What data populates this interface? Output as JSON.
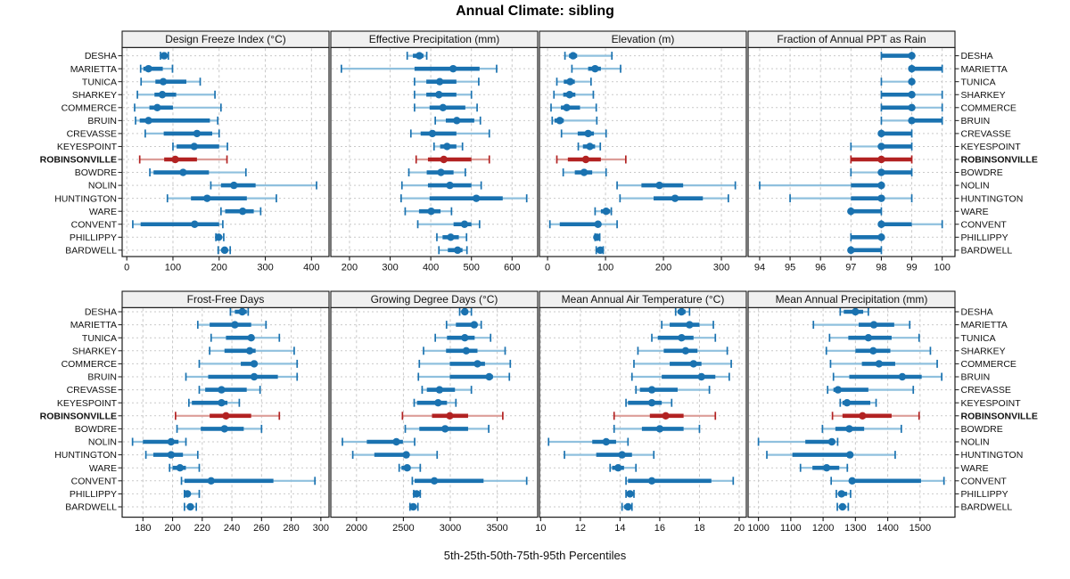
{
  "title": "Annual Climate: sibling",
  "caption": "5th-25th-50th-75th-95th Percentiles",
  "chart_data": {
    "type": "dotplot-trellis",
    "title": "Annual Climate: sibling",
    "caption": "5th-25th-50th-75th-95th Percentiles",
    "percentiles": [
      5,
      25,
      50,
      75,
      95
    ],
    "grid": true,
    "legend_position": "none",
    "highlight_site": "ROBINSONVILLE",
    "sites": [
      "DESHA",
      "MARIETTA",
      "TUNICA",
      "SHARKEY",
      "COMMERCE",
      "BRUIN",
      "CREVASSE",
      "KEYESPOINT",
      "ROBINSONVILLE",
      "BOWDRE",
      "NOLIN",
      "HUNTINGTON",
      "WARE",
      "CONVENT",
      "PHILLIPPY",
      "BARDWELL"
    ],
    "colors": {
      "series": "#1a72b0",
      "series_light": "#8fc0de",
      "highlight": "#b22222",
      "highlight_light": "#dc9d98",
      "grid": "#c9c9c9",
      "strip_bg": "#f0f0f0",
      "border": "#1a1a1a",
      "text": "#111111"
    },
    "panels": [
      {
        "title": "Design Freeze Index (°C)",
        "grid_row": 0,
        "grid_col": 0,
        "xlim": [
          -10,
          438
        ],
        "ticks": [
          0,
          100,
          200,
          300,
          400
        ],
        "values": [
          [
            73,
            76,
            81,
            86,
            90
          ],
          [
            30,
            36,
            47,
            78,
            99
          ],
          [
            31,
            62,
            79,
            129,
            159
          ],
          [
            23,
            60,
            77,
            107,
            191
          ],
          [
            17,
            49,
            66,
            100,
            204
          ],
          [
            19,
            28,
            47,
            180,
            197
          ],
          [
            40,
            80,
            152,
            185,
            200
          ],
          [
            100,
            108,
            146,
            200,
            218
          ],
          [
            28,
            81,
            105,
            152,
            217
          ],
          [
            50,
            58,
            122,
            178,
            258
          ],
          [
            182,
            204,
            232,
            279,
            411
          ],
          [
            88,
            139,
            174,
            260,
            324
          ],
          [
            204,
            213,
            251,
            275,
            290
          ],
          [
            13,
            30,
            147,
            200,
            208
          ],
          [
            193,
            196,
            199,
            205,
            210
          ],
          [
            198,
            205,
            212,
            218,
            224
          ]
        ]
      },
      {
        "title": "Effective Precipitation (mm)",
        "grid_row": 0,
        "grid_col": 1,
        "xlim": [
          154,
          663
        ],
        "ticks": [
          200,
          300,
          400,
          500,
          600
        ],
        "values": [
          [
            342,
            356,
            372,
            382,
            390
          ],
          [
            180,
            360,
            455,
            520,
            562
          ],
          [
            360,
            389,
            422,
            463,
            518
          ],
          [
            360,
            389,
            420,
            463,
            500
          ],
          [
            360,
            397,
            430,
            485,
            514
          ],
          [
            411,
            437,
            464,
            507,
            522
          ],
          [
            351,
            375,
            404,
            463,
            544
          ],
          [
            408,
            423,
            440,
            463,
            478
          ],
          [
            364,
            393,
            432,
            500,
            544
          ],
          [
            346,
            390,
            425,
            456,
            485
          ],
          [
            329,
            393,
            447,
            500,
            524
          ],
          [
            327,
            397,
            512,
            577,
            636
          ],
          [
            337,
            371,
            401,
            424,
            451
          ],
          [
            368,
            456,
            483,
            500,
            520
          ],
          [
            415,
            429,
            449,
            469,
            488
          ],
          [
            420,
            442,
            466,
            478,
            489
          ]
        ]
      },
      {
        "title": "Elevation (m)",
        "grid_row": 0,
        "grid_col": 2,
        "xlim": [
          -14,
          343
        ],
        "ticks": [
          0,
          100,
          200,
          300
        ],
        "values": [
          [
            30,
            37,
            44,
            51,
            111
          ],
          [
            42,
            70,
            82,
            92,
            126
          ],
          [
            16,
            28,
            39,
            47,
            75
          ],
          [
            11,
            27,
            38,
            48,
            79
          ],
          [
            6,
            23,
            33,
            56,
            84
          ],
          [
            8,
            12,
            21,
            28,
            85
          ],
          [
            24,
            52,
            70,
            80,
            101
          ],
          [
            53,
            61,
            73,
            82,
            91
          ],
          [
            16,
            35,
            66,
            92,
            135
          ],
          [
            27,
            47,
            63,
            77,
            101
          ],
          [
            120,
            162,
            193,
            234,
            324
          ],
          [
            125,
            183,
            220,
            268,
            312
          ],
          [
            82,
            92,
            101,
            108,
            110
          ],
          [
            4,
            21,
            87,
            92,
            120
          ],
          [
            82,
            84,
            85,
            88,
            90
          ],
          [
            84,
            88,
            91,
            94,
            96
          ]
        ]
      },
      {
        "title": "Fraction of Annual PPT as Rain",
        "grid_row": 0,
        "grid_col": 3,
        "xlim": [
          93.62,
          100.42
        ],
        "ticks": [
          94,
          95,
          96,
          97,
          98,
          99,
          100
        ],
        "values": [
          [
            98,
            98,
            99,
            99,
            99
          ],
          [
            99,
            99,
            99,
            100,
            100
          ],
          [
            98,
            99,
            99,
            99,
            99
          ],
          [
            98,
            98,
            99,
            99,
            100
          ],
          [
            98,
            98,
            99,
            99,
            100
          ],
          [
            98,
            99,
            99,
            100,
            100
          ],
          [
            98,
            98,
            98,
            99,
            99
          ],
          [
            97,
            98,
            98,
            99,
            99
          ],
          [
            97,
            97,
            98,
            99,
            99
          ],
          [
            97,
            98,
            98,
            99,
            99
          ],
          [
            94,
            97,
            98,
            98,
            98
          ],
          [
            95,
            97,
            98,
            98,
            99
          ],
          [
            97,
            97,
            97,
            98,
            98
          ],
          [
            98,
            98,
            98,
            99,
            100
          ],
          [
            97,
            97,
            98,
            98,
            98
          ],
          [
            97,
            97,
            97,
            98,
            98
          ]
        ]
      },
      {
        "title": "Frost-Free Days",
        "grid_row": 1,
        "grid_col": 0,
        "xlim": [
          166,
          305.5
        ],
        "ticks": [
          180,
          200,
          220,
          240,
          260,
          280,
          300
        ],
        "values": [
          [
            239,
            242,
            247,
            250,
            251
          ],
          [
            217,
            225,
            242,
            253,
            263
          ],
          [
            226,
            236,
            253,
            255,
            272
          ],
          [
            225,
            235,
            252,
            256,
            282
          ],
          [
            218,
            246,
            255,
            257,
            284
          ],
          [
            209,
            224,
            255,
            271,
            284
          ],
          [
            218,
            222,
            233,
            250,
            259
          ],
          [
            211,
            213,
            233,
            237,
            245
          ],
          [
            202,
            225,
            236,
            253,
            272
          ],
          [
            203,
            219,
            235,
            248,
            260
          ],
          [
            173,
            180,
            199,
            204,
            209
          ],
          [
            182,
            187,
            199,
            207,
            217
          ],
          [
            198,
            200,
            205,
            209,
            218
          ],
          [
            206,
            208,
            226,
            268,
            296
          ],
          [
            208,
            209,
            210,
            212,
            218
          ],
          [
            208,
            210,
            212,
            214,
            216
          ]
        ]
      },
      {
        "title": "Growing Degree Days (°C)",
        "grid_row": 1,
        "grid_col": 1,
        "xlim": [
          1726,
          3932
        ],
        "ticks": [
          2000,
          2500,
          3000,
          3500
        ],
        "values": [
          [
            3100,
            3120,
            3155,
            3190,
            3225
          ],
          [
            2960,
            3060,
            3255,
            3290,
            3330
          ],
          [
            2840,
            2965,
            3155,
            3260,
            3430
          ],
          [
            2715,
            2955,
            3170,
            3290,
            3585
          ],
          [
            2670,
            2995,
            3290,
            3370,
            3640
          ],
          [
            2660,
            2995,
            3415,
            3455,
            3630
          ],
          [
            2700,
            2750,
            2885,
            3050,
            3225
          ],
          [
            2615,
            2645,
            2870,
            2965,
            3060
          ],
          [
            2490,
            2805,
            2995,
            3190,
            3560
          ],
          [
            2520,
            2670,
            2945,
            3190,
            3410
          ],
          [
            1850,
            2110,
            2425,
            2495,
            2620
          ],
          [
            1960,
            2190,
            2530,
            2545,
            2860
          ],
          [
            2455,
            2480,
            2540,
            2575,
            2680
          ],
          [
            2595,
            2620,
            2830,
            3355,
            3815
          ],
          [
            2610,
            2625,
            2640,
            2655,
            2680
          ],
          [
            2570,
            2590,
            2605,
            2630,
            2655
          ]
        ]
      },
      {
        "title": "Mean Annual Air Temperature (°C)",
        "grid_row": 1,
        "grid_col": 2,
        "xlim": [
          9.94,
          20.36
        ],
        "ticks": [
          10,
          12,
          14,
          16,
          18,
          20
        ],
        "values": [
          [
            16.8,
            16.9,
            17.1,
            17.3,
            17.5
          ],
          [
            16.1,
            16.5,
            17.5,
            18.0,
            18.7
          ],
          [
            15.6,
            15.9,
            17.1,
            17.7,
            18.8
          ],
          [
            14.9,
            16.2,
            17.3,
            17.9,
            19.4
          ],
          [
            14.7,
            16.5,
            17.7,
            18.1,
            19.6
          ],
          [
            14.6,
            16.1,
            18.1,
            18.8,
            19.5
          ],
          [
            14.8,
            15.0,
            15.6,
            16.9,
            18.5
          ],
          [
            14.3,
            14.4,
            15.6,
            16.1,
            16.6
          ],
          [
            13.7,
            15.5,
            16.3,
            17.2,
            18.8
          ],
          [
            13.7,
            15.1,
            16.0,
            17.2,
            18.0
          ],
          [
            10.4,
            12.6,
            13.3,
            13.8,
            14.4
          ],
          [
            11.2,
            12.8,
            14.1,
            14.6,
            15.7
          ],
          [
            13.5,
            13.6,
            13.9,
            14.2,
            14.8
          ],
          [
            14.3,
            14.4,
            15.6,
            18.6,
            19.7
          ],
          [
            14.3,
            14.4,
            14.5,
            14.6,
            14.7
          ],
          [
            14.1,
            14.2,
            14.4,
            14.5,
            14.6
          ]
        ]
      },
      {
        "title": "Mean Annual Precipitation (mm)",
        "grid_row": 1,
        "grid_col": 3,
        "xlim": [
          968,
          1608
        ],
        "ticks": [
          1000,
          1100,
          1200,
          1300,
          1400,
          1500
        ],
        "values": [
          [
            1253,
            1264,
            1300,
            1324,
            1340
          ],
          [
            1170,
            1310,
            1357,
            1420,
            1468
          ],
          [
            1220,
            1278,
            1340,
            1412,
            1497
          ],
          [
            1210,
            1300,
            1355,
            1408,
            1532
          ],
          [
            1223,
            1320,
            1373,
            1423,
            1553
          ],
          [
            1232,
            1281,
            1445,
            1505,
            1567
          ],
          [
            1214,
            1232,
            1246,
            1340,
            1479
          ],
          [
            1253,
            1260,
            1274,
            1346,
            1364
          ],
          [
            1229,
            1260,
            1322,
            1412,
            1497
          ],
          [
            1198,
            1238,
            1281,
            1327,
            1442
          ],
          [
            1000,
            1145,
            1227,
            1237,
            1245
          ],
          [
            1026,
            1105,
            1283,
            1292,
            1423
          ],
          [
            1130,
            1167,
            1211,
            1250,
            1275
          ],
          [
            1225,
            1281,
            1290,
            1503,
            1574
          ],
          [
            1241,
            1248,
            1257,
            1274,
            1285
          ],
          [
            1244,
            1252,
            1260,
            1270,
            1278
          ]
        ]
      }
    ]
  }
}
